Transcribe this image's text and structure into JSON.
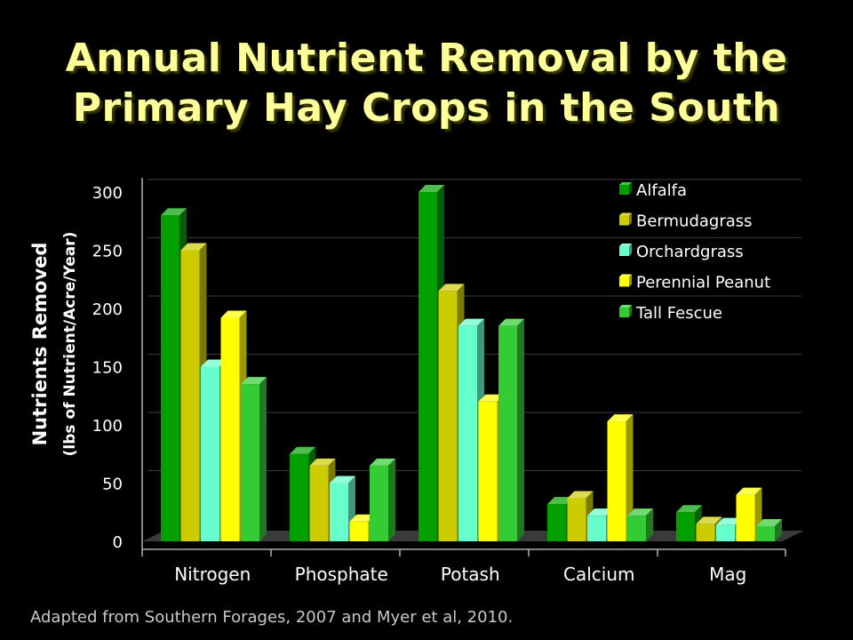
{
  "title_lines": [
    "Annual Nutrient Removal by the",
    "Primary Hay Crops in the South"
  ],
  "source": "Adapted from Southern Forages, 2007 and Myer et al, 2010.",
  "chart_data": {
    "type": "bar",
    "categories": [
      "Nitrogen",
      "Phosphate",
      "Potash",
      "Calcium",
      "Mag"
    ],
    "series": [
      {
        "name": "Alfalfa",
        "color": "#00a000",
        "values": [
          280,
          75,
          300,
          32,
          25
        ]
      },
      {
        "name": "Bermudagrass",
        "color": "#cccc00",
        "values": [
          250,
          65,
          215,
          37,
          15
        ]
      },
      {
        "name": "Orchardgrass",
        "color": "#66ffcc",
        "values": [
          150,
          50,
          185,
          22,
          14
        ]
      },
      {
        "name": "Perennial Peanut",
        "color": "#ffff00",
        "values": [
          192,
          17,
          120,
          103,
          40
        ]
      },
      {
        "name": "Tall Fescue",
        "color": "#33cc33",
        "values": [
          135,
          65,
          185,
          22,
          13
        ]
      }
    ],
    "ylabel": "Nutrients Removed",
    "ylabel_sub": "(lbs of Nutrient/Acre/Year)",
    "yticks": [
      0,
      50,
      100,
      150,
      200,
      250,
      300
    ],
    "ylim": [
      0,
      300
    ],
    "grid": true,
    "legend": "top-right",
    "style": "3d"
  }
}
